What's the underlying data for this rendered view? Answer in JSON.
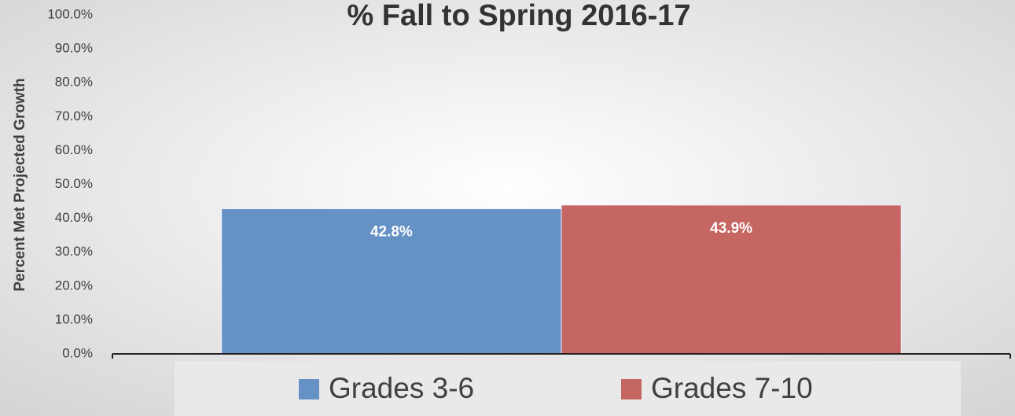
{
  "chart_data": {
    "type": "bar",
    "title": "% Fall to Spring 2016-17",
    "y_label": "Percent Met Projected Growth",
    "categories": [
      null
    ],
    "series": [
      {
        "name": "Grades 3-6",
        "color": "#6591c5",
        "values": [
          42.8
        ],
        "value_labels": [
          "42.8%"
        ]
      },
      {
        "name": "Grades 7-10",
        "color": "#c66662",
        "values": [
          43.9
        ],
        "value_labels": [
          "43.9%"
        ]
      }
    ],
    "ylim": [
      0,
      100
    ],
    "yticks": [
      {
        "value": 0,
        "label": "0.0%"
      },
      {
        "value": 10,
        "label": "10.0%"
      },
      {
        "value": 20,
        "label": "20.0%"
      },
      {
        "value": 30,
        "label": "30.0%"
      },
      {
        "value": 40,
        "label": "40.0%"
      },
      {
        "value": 50,
        "label": "50.0%"
      },
      {
        "value": 60,
        "label": "60.0%"
      },
      {
        "value": 70,
        "label": "70.0%"
      },
      {
        "value": 80,
        "label": "80.0%"
      },
      {
        "value": 90,
        "label": "90.0%"
      },
      {
        "value": 100,
        "label": "100.0%"
      }
    ],
    "grid": false,
    "legend": "bottom"
  }
}
